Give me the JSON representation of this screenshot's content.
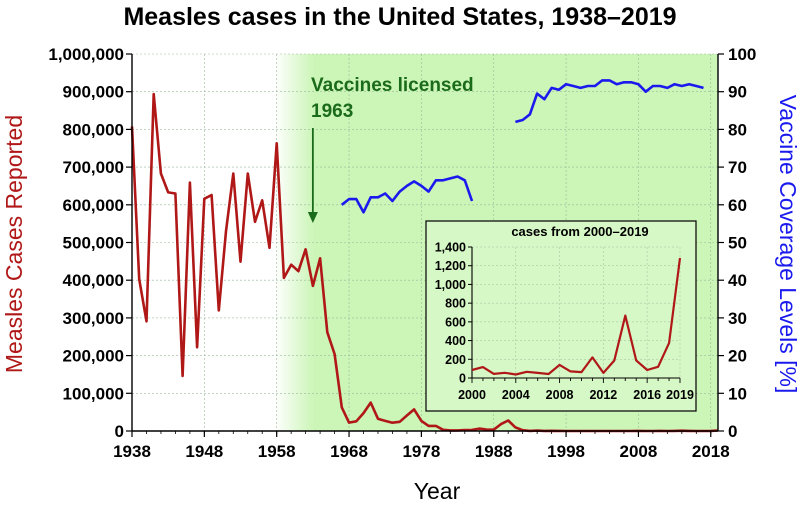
{
  "chart_data": [
    {
      "type": "line",
      "title": "Measles cases in the United States, 1938–2019",
      "xlabel": "Year",
      "ylabel_left": "Measles Cases Reported",
      "ylabel_right": "Vaccine Coverage Levels [%]",
      "xlim": [
        1938,
        2019
      ],
      "ylim_left": [
        0,
        1000000
      ],
      "ylim_right": [
        0,
        100
      ],
      "x_ticks": [
        "1938",
        "1948",
        "1958",
        "1968",
        "1978",
        "1988",
        "1998",
        "2008",
        "2018"
      ],
      "y_ticks_left": [
        "0",
        "100,000",
        "200,000",
        "300,000",
        "400,000",
        "500,000",
        "600,000",
        "700,000",
        "800,000",
        "900,000",
        "1,000,000"
      ],
      "y_ticks_right": [
        "0",
        "10",
        "20",
        "30",
        "40",
        "50",
        "60",
        "70",
        "80",
        "90",
        "100"
      ],
      "shaded_region": {
        "from": 1963,
        "to": 2019,
        "color": "#ccf5b8"
      },
      "annotation": {
        "line1": "Vaccines licensed",
        "line2": "1963",
        "x": 1963
      },
      "grid": true,
      "series": [
        {
          "axis": "left",
          "color": "#b01818",
          "x": [
            1938,
            1939,
            1940,
            1941,
            1942,
            1943,
            1944,
            1945,
            1946,
            1947,
            1948,
            1949,
            1950,
            1951,
            1952,
            1953,
            1954,
            1955,
            1956,
            1957,
            1958,
            1959,
            1960,
            1961,
            1962,
            1963,
            1964,
            1965,
            1966,
            1967,
            1968,
            1969,
            1970,
            1971,
            1972,
            1973,
            1974,
            1975,
            1976,
            1977,
            1978,
            1979,
            1980,
            1981,
            1982,
            1983,
            1984,
            1985,
            1986,
            1987,
            1988,
            1989,
            1990,
            1991,
            1992,
            1993,
            1994,
            1995,
            1996,
            1997,
            1998,
            1999,
            2000,
            2001,
            2002,
            2003,
            2004,
            2005,
            2006,
            2007,
            2008,
            2009,
            2010,
            2011,
            2012,
            2013,
            2014,
            2015,
            2016,
            2017,
            2018,
            2019
          ],
          "values": [
            808000,
            403000,
            291000,
            894000,
            683000,
            633000,
            630000,
            146000,
            659000,
            222000,
            616000,
            626000,
            320000,
            530000,
            683000,
            449000,
            683000,
            555000,
            612000,
            486000,
            763000,
            406000,
            441000,
            424000,
            482000,
            385000,
            458000,
            262000,
            204000,
            62700,
            22200,
            25800,
            47400,
            75300,
            32300,
            26700,
            22100,
            24400,
            41100,
            57300,
            26900,
            13600,
            13500,
            3100,
            1700,
            1500,
            2600,
            2800,
            6300,
            3700,
            3400,
            18200,
            27800,
            9600,
            2200,
            300,
            1000,
            300,
            500,
            140,
            100,
            100,
            86,
            116,
            44,
            56,
            37,
            66,
            55,
            43,
            140,
            71,
            63,
            220,
            55,
            187,
            667,
            188,
            86,
            120,
            375,
            1282
          ]
        },
        {
          "axis": "right",
          "color": "#1a1aee",
          "segments": [
            {
              "x": [
                1967,
                1968,
                1969,
                1970,
                1971,
                1972,
                1973,
                1974,
                1975,
                1976,
                1977,
                1978,
                1979,
                1980,
                1981,
                1982,
                1983,
                1984,
                1985
              ],
              "values": [
                60,
                61.5,
                61.5,
                58,
                62,
                62,
                63,
                61,
                63.5,
                65,
                66.2,
                65,
                63.5,
                66.5,
                66.5,
                67,
                67.5,
                66.5,
                61
              ]
            },
            {
              "x": [
                1991,
                1992,
                1993,
                1994,
                1995,
                1996,
                1997,
                1998,
                1999,
                2000,
                2001,
                2002,
                2003,
                2004,
                2005,
                2006,
                2007,
                2008,
                2009,
                2010,
                2011,
                2012,
                2013,
                2014,
                2015,
                2016,
                2017
              ],
              "values": [
                82,
                82.5,
                84,
                89.5,
                88,
                91,
                90.5,
                92,
                91.5,
                91,
                91.5,
                91.5,
                93,
                93,
                92,
                92.5,
                92.5,
                92,
                90,
                91.5,
                91.5,
                91,
                92,
                91.5,
                92,
                91.5,
                91
              ]
            }
          ]
        }
      ]
    },
    {
      "type": "line",
      "title": "cases from 2000–2019",
      "xlim": [
        2000,
        2019
      ],
      "ylim": [
        0,
        1400
      ],
      "x_tick_labels": [
        "2000",
        "2004",
        "2008",
        "2012",
        "2016",
        "2019"
      ],
      "y_tick_labels": [
        "0",
        "200",
        "400",
        "600",
        "800",
        "1,000",
        "1,200",
        "1,400"
      ],
      "grid": true,
      "series": [
        {
          "color": "#b01818",
          "x": [
            2000,
            2001,
            2002,
            2003,
            2004,
            2005,
            2006,
            2007,
            2008,
            2009,
            2010,
            2011,
            2012,
            2013,
            2014,
            2015,
            2016,
            2017,
            2018,
            2019
          ],
          "values": [
            86,
            116,
            44,
            56,
            37,
            66,
            55,
            43,
            140,
            71,
            63,
            220,
            55,
            187,
            667,
            188,
            86,
            120,
            375,
            1282
          ]
        }
      ]
    }
  ]
}
